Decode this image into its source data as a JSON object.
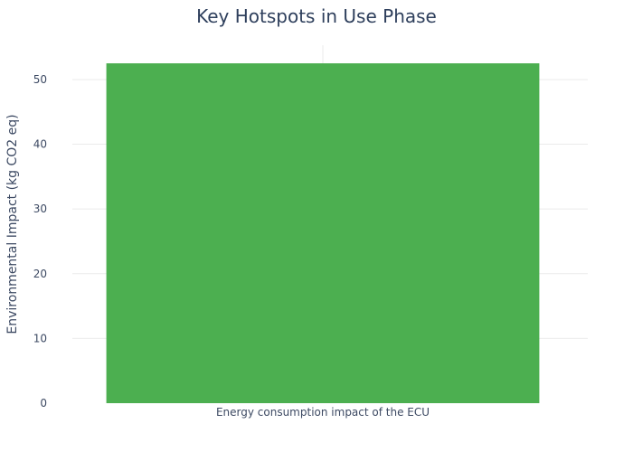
{
  "chart_data": {
    "type": "bar",
    "title": "Key Hotspots in Use Phase",
    "xlabel": "",
    "ylabel": "Environmental Impact (kg CO2 eq)",
    "categories": [
      "Energy consumption impact of the ECU"
    ],
    "values": [
      52.5
    ],
    "ylim": [
      0,
      55.3
    ],
    "yticks": [
      0,
      10,
      20,
      30,
      40,
      50
    ],
    "grid": true,
    "legend": "none",
    "bar_color": "#4caf50"
  }
}
